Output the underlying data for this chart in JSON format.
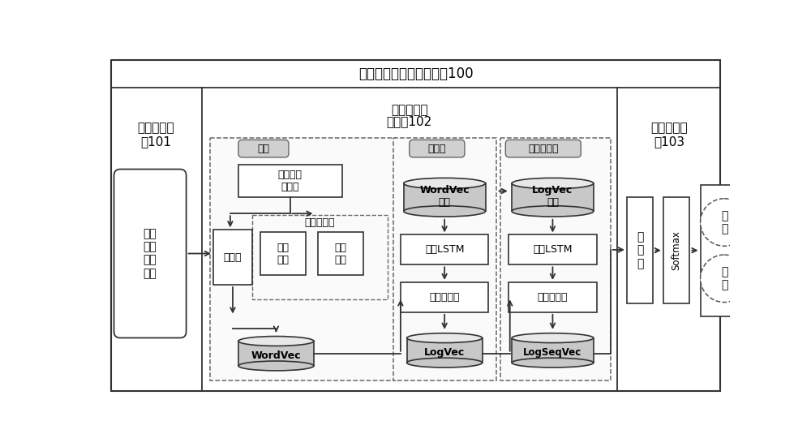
{
  "title": "检测日志序列异常的装置100",
  "section1_label": "数据获取模\n块101",
  "section2_label1": "语义向量生",
  "section2_label2": "成模块102",
  "section3_label": "异常检测模\n块103",
  "input_box_label": "获取\n原始\n日志\n序列",
  "preprocess_label": "日志数据\n预处理",
  "wordembed_label": "词嵌入",
  "importance_label": "重要度计算",
  "pos_weight_label": "词性\n权重",
  "freq_weight_label": "词频\n权重",
  "wordvec_label": "WordVec",
  "wordlayer_label": "词层",
  "loglayer_label": "日志层",
  "logseqlayer_label": "日志序列层",
  "wordvec_seq_label": "WordVec\n序列",
  "bilstm1_label": "双向LSTM",
  "attention1_label": "注意力机制",
  "logvec_label": "LogVec",
  "logvec_seq_label": "LogVec\n序列",
  "bilstm2_label": "双向LSTM",
  "attention2_label": "注意力机制",
  "logseqvec_label": "LogSeqVec",
  "linear_label": "线\n性\n层",
  "softmax_label": "Softmax",
  "normal_label": "正\n常",
  "abnormal_label": "异\n常",
  "bg_color": "#ffffff",
  "box_ec": "#333333",
  "gray_fill": "#c8c8c8",
  "dashed_ec": "#666666"
}
